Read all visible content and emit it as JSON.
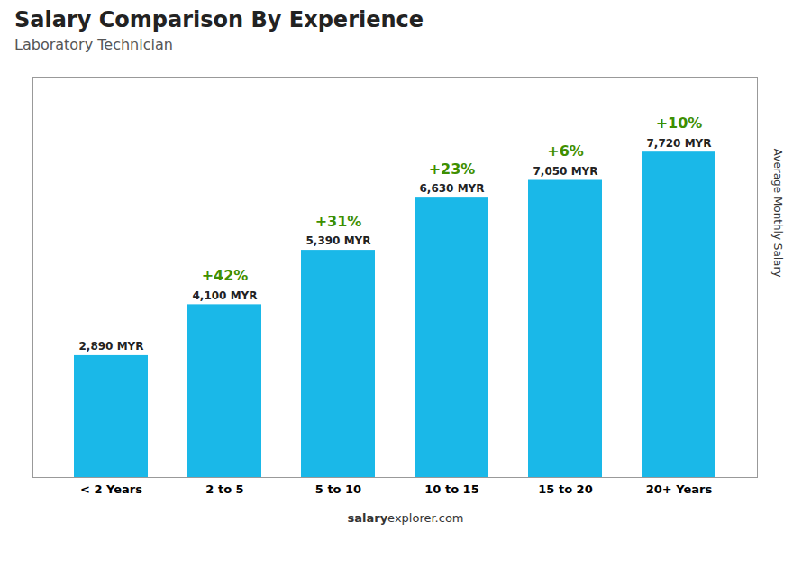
{
  "chart_data": {
    "type": "bar",
    "title": "Salary Comparison By Experience",
    "subtitle": "Laboratory Technician",
    "ylabel": "Average Monthly Salary",
    "categories": [
      "< 2 Years",
      "2 to 5",
      "5 to 10",
      "10 to 15",
      "15 to 20",
      "20+ Years"
    ],
    "values": [
      2890,
      4100,
      5390,
      6630,
      7050,
      7720
    ],
    "value_labels": [
      "2,890 MYR",
      "4,100 MYR",
      "5,390 MYR",
      "6,630 MYR",
      "7,050 MYR",
      "7,720 MYR"
    ],
    "data_labels": true,
    "annotations": [
      "+42%",
      "+31%",
      "+23%",
      "+6%",
      "+10%"
    ],
    "color": "#1ab8e8",
    "ylim": [
      0,
      9500
    ],
    "yticks": [],
    "tick_labels": "x",
    "footer": [
      "salary",
      "explorer.com"
    ]
  }
}
